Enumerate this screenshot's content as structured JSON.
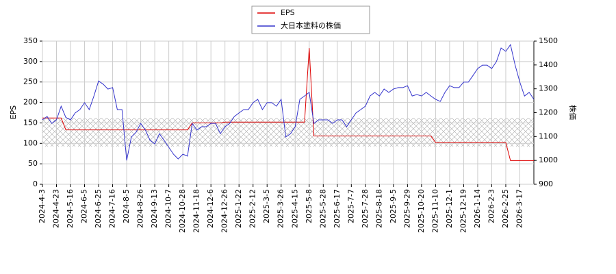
{
  "chart_data": {
    "type": "line",
    "categories": [
      "2024-4-3",
      null,
      null,
      "2024-4-23",
      null,
      null,
      "2024-5-16",
      null,
      null,
      "2024-6-5",
      null,
      null,
      "2024-6-25",
      null,
      null,
      "2024-7-16",
      null,
      null,
      "2024-8-5",
      null,
      null,
      "2024-8-26",
      null,
      null,
      "2024-9-13",
      null,
      null,
      "2024-10-7",
      null,
      null,
      "2024-10-28",
      null,
      null,
      "2024-11-18",
      null,
      null,
      "2024-12-6",
      null,
      null,
      "2024-12-26",
      null,
      null,
      "2025-1-22",
      null,
      null,
      "2025-2-12",
      null,
      null,
      "2025-3-5",
      null,
      null,
      "2025-3-26",
      null,
      null,
      "2025-4-15",
      null,
      null,
      "2025-5-8",
      null,
      null,
      "2025-5-28",
      null,
      null,
      "2025-6-17",
      null,
      null,
      "2025-7-7",
      null,
      null,
      "2025-7-28",
      null,
      null,
      "2025-8-18",
      null,
      null,
      "2025-9-5",
      null,
      null,
      "2025-9-29",
      null,
      null,
      "2025-10-20",
      null,
      null,
      "2025-11-10",
      null,
      null,
      "2025-12-1",
      null,
      null,
      "2025-12-19",
      null,
      null,
      "2026-1-14",
      null,
      null,
      "2026-2-3",
      null,
      null,
      "2026-2-25",
      null,
      null,
      "2026-3-17",
      null,
      null,
      null
    ],
    "series": [
      {
        "name": "EPS",
        "color": "#dd0000",
        "axis": "y",
        "values": [
          162,
          162,
          162,
          162,
          162,
          133,
          133,
          133,
          133,
          133,
          133,
          133,
          133,
          133,
          133,
          133,
          133,
          133,
          133,
          133,
          133,
          133,
          133,
          133,
          133,
          133,
          133,
          133,
          133,
          133,
          133,
          133,
          150,
          150,
          150,
          150,
          150,
          150,
          150,
          152,
          152,
          152,
          152,
          152,
          152,
          152,
          152,
          152,
          152,
          152,
          152,
          152,
          152,
          152,
          152,
          152,
          152,
          333,
          118,
          118,
          118,
          118,
          118,
          118,
          118,
          118,
          118,
          118,
          118,
          118,
          118,
          118,
          118,
          118,
          118,
          118,
          118,
          118,
          118,
          118,
          118,
          118,
          118,
          118,
          102,
          102,
          102,
          102,
          102,
          102,
          102,
          102,
          102,
          102,
          102,
          102,
          102,
          102,
          102,
          102,
          58,
          58,
          58,
          58,
          58,
          58
        ]
      },
      {
        "name": "大日本塗料の株価",
        "color": "#3333cc",
        "axis": "y2",
        "values": [
          1170,
          1184,
          1155,
          1170,
          1227,
          1180,
          1170,
          1199,
          1213,
          1242,
          1213,
          1270,
          1333,
          1319,
          1299,
          1305,
          1213,
          1213,
          1000,
          1098,
          1118,
          1155,
          1127,
          1084,
          1069,
          1112,
          1084,
          1055,
          1026,
          1006,
          1026,
          1018,
          1155,
          1127,
          1141,
          1141,
          1155,
          1155,
          1112,
          1141,
          1155,
          1184,
          1199,
          1213,
          1213,
          1242,
          1256,
          1213,
          1242,
          1242,
          1227,
          1256,
          1098,
          1112,
          1141,
          1256,
          1270,
          1285,
          1155,
          1170,
          1170,
          1170,
          1155,
          1170,
          1170,
          1141,
          1170,
          1199,
          1213,
          1227,
          1270,
          1285,
          1270,
          1299,
          1285,
          1299,
          1305,
          1305,
          1313,
          1270,
          1276,
          1270,
          1285,
          1270,
          1256,
          1247,
          1285,
          1313,
          1305,
          1305,
          1328,
          1328,
          1356,
          1385,
          1399,
          1399,
          1385,
          1414,
          1471,
          1457,
          1485,
          1399,
          1328,
          1270,
          1285,
          1256
        ]
      }
    ],
    "y_label": "EPS",
    "y2_label": "株価",
    "ylim": [
      0,
      350
    ],
    "yticks": [
      0,
      50,
      100,
      150,
      200,
      250,
      300,
      350
    ],
    "y2lim": [
      900,
      1500
    ],
    "y2ticks": [
      900,
      1000,
      1100,
      1200,
      1300,
      1400,
      1500
    ],
    "grid": true
  }
}
